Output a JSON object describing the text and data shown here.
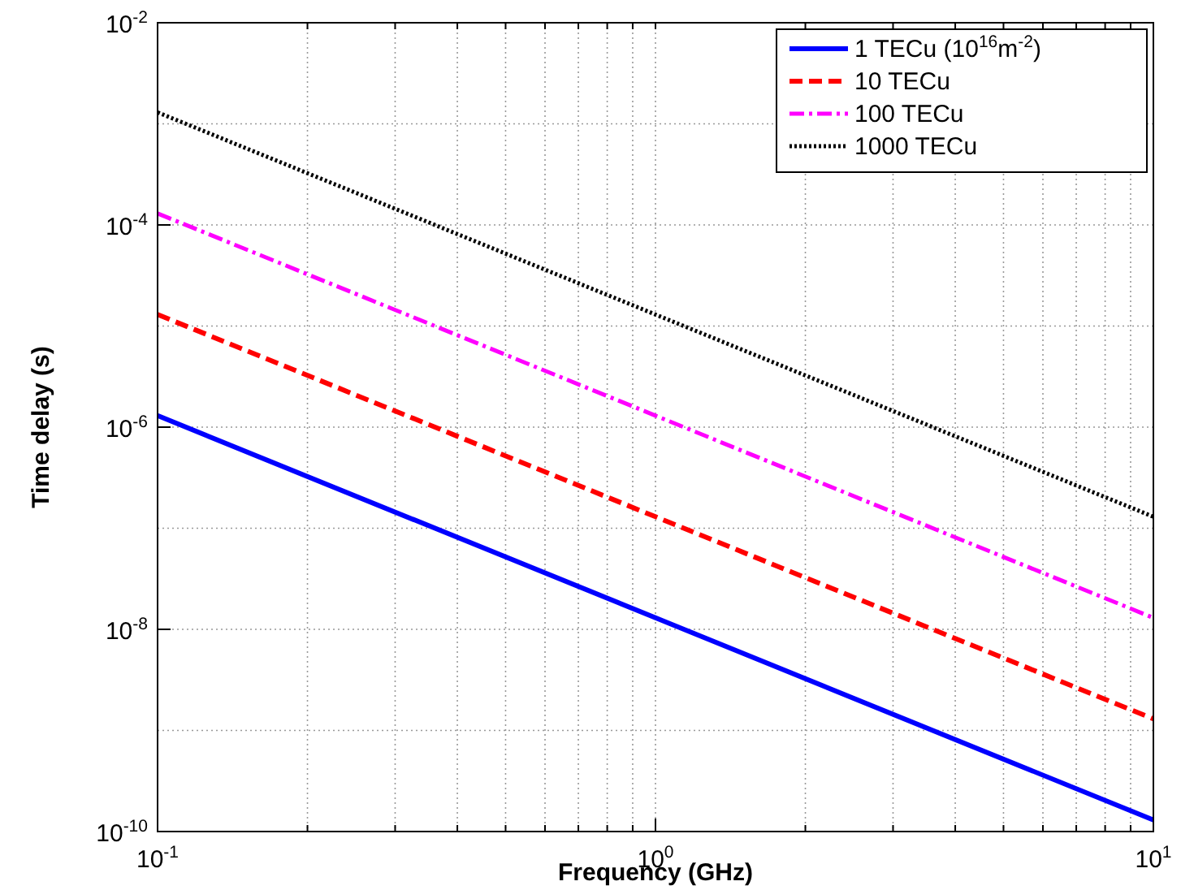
{
  "chart_data": {
    "type": "line",
    "xlabel": "Frequency (GHz)",
    "ylabel": "Time delay (s)",
    "log": "xy",
    "grid": true,
    "legend": "top right",
    "xlim": [
      0.1,
      10
    ],
    "ylim": [
      1e-10,
      0.01
    ],
    "xticks": [
      {
        "value": 0.1,
        "label": "10$^{-1}$"
      },
      {
        "value": 1,
        "label": "10$^{0}$"
      },
      {
        "value": 10,
        "label": "10$^{1}$"
      }
    ],
    "yticks": [
      {
        "value": 1e-10,
        "label": "10$^{-10}$"
      },
      {
        "value": 1e-08,
        "label": "10$^{-8}$"
      },
      {
        "value": 1e-06,
        "label": "10$^{-6}$"
      },
      {
        "value": 0.0001,
        "label": "10$^{-4}$"
      },
      {
        "value": 0.01,
        "label": "10$^{-2}$"
      }
    ],
    "series": [
      {
        "name": "1 TECu (10$^{16}$m$^{-2}$)",
        "color": "#0000ff",
        "line_style": "solid",
        "x": [
          0.1,
          1,
          10
        ],
        "values": [
          1.3e-06,
          1.3e-08,
          1.3e-10
        ]
      },
      {
        "name": "10 TECu",
        "color": "#ff0000",
        "line_style": "dashed",
        "x": [
          0.1,
          1,
          10
        ],
        "values": [
          1.3e-05,
          1.3e-07,
          1.3e-09
        ]
      },
      {
        "name": "100 TECu",
        "color": "#ff00ff",
        "line_style": "dashdot",
        "x": [
          0.1,
          1,
          10
        ],
        "values": [
          0.00013,
          1.3e-06,
          1.3e-08
        ]
      },
      {
        "name": "1000 TECu",
        "color": "#000000",
        "line_style": "dotted",
        "x": [
          0.1,
          1,
          10
        ],
        "values": [
          0.0013,
          1.3e-05,
          1.3e-07
        ]
      }
    ]
  }
}
